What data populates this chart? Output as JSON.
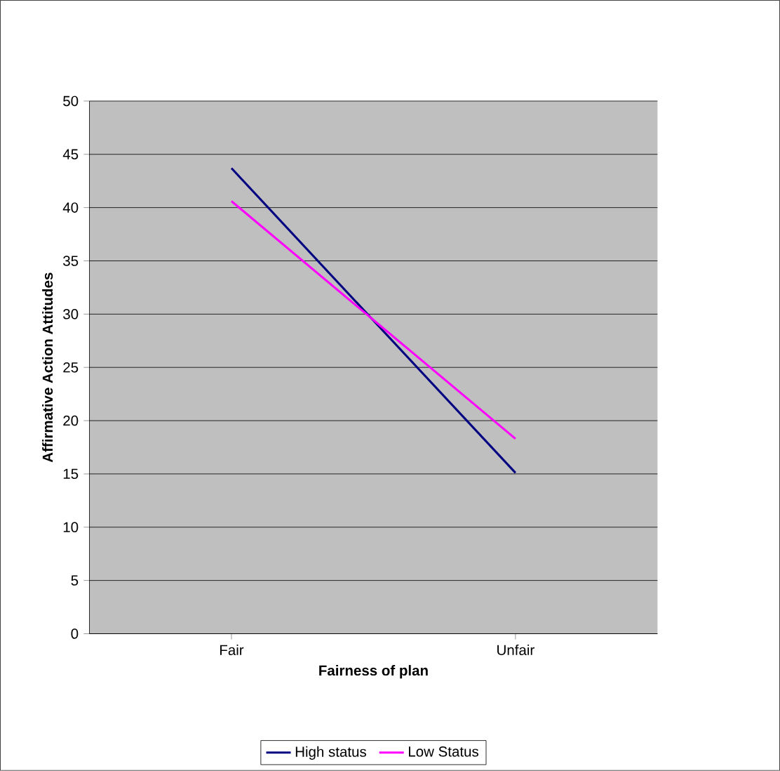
{
  "chart_data": {
    "type": "line",
    "xlabel": "Fairness of plan",
    "ylabel": "Affirmative Action Attitudes",
    "categories": [
      "Fair",
      "Unfair"
    ],
    "series": [
      {
        "name": "High status",
        "color": "#000080",
        "values": [
          43.7,
          15.1
        ]
      },
      {
        "name": "Low Status",
        "color": "#ff00ff",
        "values": [
          40.6,
          18.3
        ]
      }
    ],
    "ylim": [
      0,
      50
    ],
    "yticks": [
      0,
      5,
      10,
      15,
      20,
      25,
      30,
      35,
      40,
      45,
      50
    ],
    "grid": "y",
    "legend": "bottom",
    "marker": "none",
    "line_style": "solid"
  }
}
